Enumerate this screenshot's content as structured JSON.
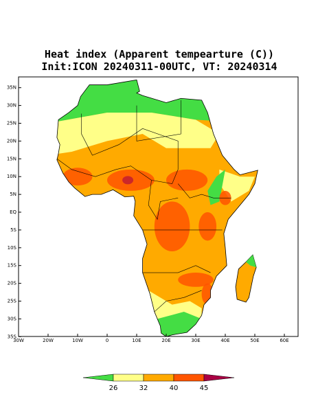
{
  "header": {
    "title": "Heat index (Apparent tempearture (C))",
    "subtitle": "Init:ICON 20240311-00UTC, VT: 20240314"
  },
  "map": {
    "lat_ticks": [
      {
        "value": 35,
        "label": "35N"
      },
      {
        "value": 30,
        "label": "30N"
      },
      {
        "value": 25,
        "label": "25N"
      },
      {
        "value": 20,
        "label": "20N"
      },
      {
        "value": 15,
        "label": "15N"
      },
      {
        "value": 10,
        "label": "10N"
      },
      {
        "value": 5,
        "label": "5N"
      },
      {
        "value": 0,
        "label": "EQ"
      },
      {
        "value": -5,
        "label": "5S"
      },
      {
        "value": -10,
        "label": "10S"
      },
      {
        "value": -15,
        "label": "15S"
      },
      {
        "value": -20,
        "label": "20S"
      },
      {
        "value": -25,
        "label": "25S"
      },
      {
        "value": -30,
        "label": "30S"
      },
      {
        "value": -35,
        "label": "35S"
      }
    ],
    "lon_ticks": [
      {
        "value": -30,
        "label": "30W"
      },
      {
        "value": -20,
        "label": "20W"
      },
      {
        "value": -10,
        "label": "10W"
      },
      {
        "value": 0,
        "label": "0"
      },
      {
        "value": 10,
        "label": "10E"
      },
      {
        "value": 20,
        "label": "20E"
      },
      {
        "value": 30,
        "label": "30E"
      },
      {
        "value": 40,
        "label": "40E"
      },
      {
        "value": 50,
        "label": "50E"
      },
      {
        "value": 60,
        "label": "60E"
      }
    ]
  },
  "colorbar": {
    "levels": [
      26,
      32,
      40,
      45
    ],
    "colors": [
      "#44dd44",
      "#ffff88",
      "#ffaa00",
      "#ff5500",
      "#aa0044"
    ]
  }
}
